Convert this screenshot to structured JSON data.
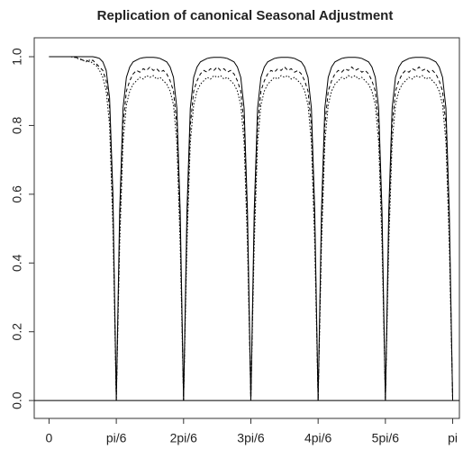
{
  "chart_data": {
    "type": "line",
    "title": "Replication of canonical Seasonal Adjustment",
    "x": [
      0,
      0.05,
      0.1,
      0.15,
      0.2,
      0.25,
      0.3,
      0.35,
      0.4,
      0.45,
      0.5,
      0.55,
      0.6,
      0.65,
      0.7,
      0.75,
      0.8,
      0.85,
      0.9,
      0.95,
      1,
      1.05,
      1.1,
      1.15,
      1.2,
      1.25,
      1.3,
      1.35,
      1.4,
      1.45,
      1.5,
      1.55,
      1.6,
      1.65,
      1.7,
      1.75,
      1.8,
      1.85,
      1.9,
      1.95,
      2,
      2.05,
      2.1,
      2.15,
      2.2,
      2.25,
      2.3,
      2.35,
      2.4,
      2.45,
      2.5,
      2.55,
      2.6,
      2.65,
      2.7,
      2.75,
      2.8,
      2.85,
      2.9,
      2.95,
      3,
      3.05,
      3.1,
      3.15,
      3.2,
      3.25,
      3.3,
      3.35,
      3.4,
      3.45,
      3.5,
      3.55,
      3.6,
      3.65,
      3.7,
      3.75,
      3.8,
      3.85,
      3.9,
      3.95,
      4,
      4.05,
      4.1,
      4.15,
      4.2,
      4.25,
      4.3,
      4.35,
      4.4,
      4.45,
      4.5,
      4.55,
      4.6,
      4.65,
      4.7,
      4.75,
      4.8,
      4.85,
      4.9,
      4.95,
      5,
      5.05,
      5.1,
      5.15,
      5.2,
      5.25,
      5.3,
      5.35,
      5.4,
      5.45,
      5.5,
      5.55,
      5.6,
      5.65,
      5.7,
      5.75,
      5.8,
      5.85,
      5.9,
      5.95,
      6
    ],
    "series": [
      {
        "color": "#000000",
        "dash": "none",
        "values": [
          1,
          1,
          1,
          1,
          1,
          1,
          1,
          1,
          1,
          1,
          1,
          1,
          1,
          1,
          0.998,
          0.995,
          0.985,
          0.96,
          0.88,
          0.6,
          0,
          0.55,
          0.85,
          0.94,
          0.97,
          0.985,
          0.99,
          0.995,
          0.997,
          0.998,
          0.998,
          0.998,
          0.997,
          0.995,
          0.99,
          0.985,
          0.97,
          0.94,
          0.85,
          0.55,
          0,
          0.55,
          0.85,
          0.94,
          0.97,
          0.985,
          0.99,
          0.995,
          0.997,
          0.998,
          0.998,
          0.998,
          0.997,
          0.995,
          0.99,
          0.985,
          0.97,
          0.94,
          0.85,
          0.55,
          0,
          0.55,
          0.85,
          0.94,
          0.97,
          0.985,
          0.99,
          0.995,
          0.997,
          0.998,
          0.998,
          0.998,
          0.997,
          0.995,
          0.99,
          0.985,
          0.97,
          0.94,
          0.85,
          0.55,
          0,
          0.55,
          0.85,
          0.94,
          0.97,
          0.985,
          0.99,
          0.995,
          0.997,
          0.998,
          0.998,
          0.998,
          0.997,
          0.995,
          0.99,
          0.985,
          0.97,
          0.94,
          0.85,
          0.55,
          0,
          0.55,
          0.85,
          0.94,
          0.97,
          0.985,
          0.99,
          0.995,
          0.997,
          0.998,
          0.998,
          0.998,
          0.997,
          0.995,
          0.99,
          0.985,
          0.97,
          0.94,
          0.85,
          0.55,
          0
        ]
      },
      {
        "color": "#000000",
        "dash": "4 3",
        "values": [
          1,
          1,
          1,
          1,
          1,
          1,
          1,
          1,
          0.998,
          0.995,
          0.99,
          0.99,
          0.985,
          0.99,
          0.98,
          0.97,
          0.96,
          0.93,
          0.85,
          0.55,
          0,
          0.5,
          0.8,
          0.9,
          0.93,
          0.95,
          0.96,
          0.955,
          0.965,
          0.96,
          0.97,
          0.96,
          0.965,
          0.955,
          0.96,
          0.95,
          0.93,
          0.9,
          0.8,
          0.5,
          0,
          0.5,
          0.8,
          0.9,
          0.93,
          0.95,
          0.96,
          0.955,
          0.965,
          0.96,
          0.97,
          0.96,
          0.965,
          0.955,
          0.96,
          0.95,
          0.93,
          0.9,
          0.8,
          0.5,
          0,
          0.5,
          0.8,
          0.9,
          0.93,
          0.95,
          0.96,
          0.955,
          0.965,
          0.96,
          0.97,
          0.96,
          0.965,
          0.955,
          0.96,
          0.95,
          0.93,
          0.9,
          0.8,
          0.5,
          0,
          0.5,
          0.8,
          0.9,
          0.93,
          0.95,
          0.96,
          0.955,
          0.965,
          0.96,
          0.97,
          0.96,
          0.965,
          0.955,
          0.96,
          0.95,
          0.93,
          0.9,
          0.8,
          0.5,
          0,
          0.5,
          0.8,
          0.9,
          0.93,
          0.95,
          0.96,
          0.955,
          0.965,
          0.96,
          0.97,
          0.96,
          0.965,
          0.955,
          0.96,
          0.95,
          0.93,
          0.9,
          0.8,
          0.5,
          0
        ]
      },
      {
        "color": "#000000",
        "dash": "1.5 2",
        "values": [
          1,
          1,
          1,
          1,
          1,
          1,
          1,
          0.999,
          0.997,
          0.993,
          0.99,
          0.985,
          0.99,
          0.98,
          0.975,
          0.96,
          0.94,
          0.9,
          0.8,
          0.5,
          0,
          0.45,
          0.75,
          0.86,
          0.9,
          0.92,
          0.93,
          0.94,
          0.935,
          0.945,
          0.94,
          0.945,
          0.935,
          0.94,
          0.93,
          0.92,
          0.9,
          0.86,
          0.75,
          0.45,
          0,
          0.45,
          0.75,
          0.86,
          0.9,
          0.92,
          0.93,
          0.94,
          0.935,
          0.945,
          0.94,
          0.945,
          0.935,
          0.94,
          0.93,
          0.92,
          0.9,
          0.86,
          0.75,
          0.45,
          0,
          0.45,
          0.75,
          0.86,
          0.9,
          0.92,
          0.93,
          0.94,
          0.935,
          0.945,
          0.94,
          0.945,
          0.935,
          0.94,
          0.93,
          0.92,
          0.9,
          0.86,
          0.75,
          0.45,
          0,
          0.45,
          0.75,
          0.86,
          0.9,
          0.92,
          0.93,
          0.94,
          0.935,
          0.945,
          0.94,
          0.945,
          0.935,
          0.94,
          0.93,
          0.92,
          0.9,
          0.86,
          0.75,
          0.45,
          0,
          0.45,
          0.75,
          0.86,
          0.9,
          0.92,
          0.93,
          0.94,
          0.935,
          0.945,
          0.94,
          0.945,
          0.935,
          0.94,
          0.93,
          0.92,
          0.9,
          0.86,
          0.75,
          0.45,
          0
        ]
      }
    ],
    "hlines": [
      0
    ],
    "xlim": [
      -0.22,
      6.1
    ],
    "ylim": [
      -0.052,
      1.055
    ],
    "xticks": [
      0,
      {
        "value": 1,
        "label": "pi/6"
      },
      {
        "value": 2,
        "label": "2pi/6"
      },
      {
        "value": 3,
        "label": "3pi/6"
      },
      {
        "value": 4,
        "label": "4pi/6"
      },
      {
        "value": 5,
        "label": "5pi/6"
      },
      {
        "value": 6,
        "label": "pi"
      }
    ],
    "yticks": [
      {
        "value": 0,
        "label": "0.0"
      },
      {
        "value": 0.2,
        "label": "0.2"
      },
      {
        "value": 0.4,
        "label": "0.4"
      },
      {
        "value": 0.6,
        "label": "0.6"
      },
      {
        "value": 0.8,
        "label": "0.8"
      },
      {
        "value": 1,
        "label": "1.0"
      }
    ]
  }
}
